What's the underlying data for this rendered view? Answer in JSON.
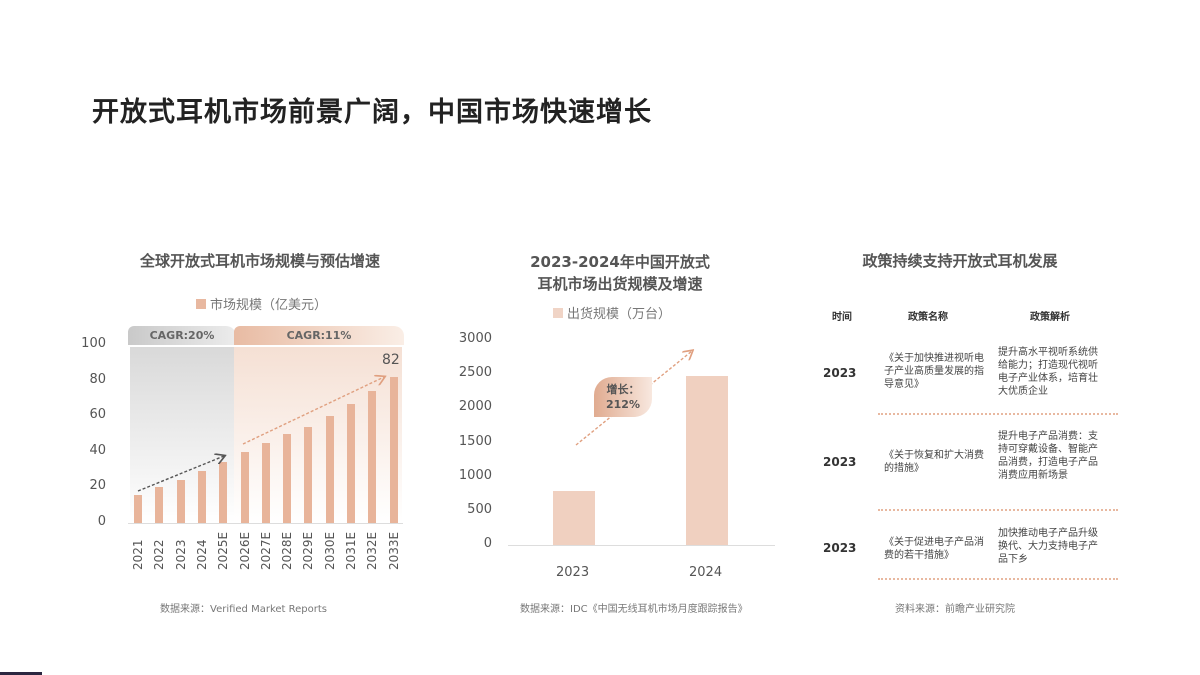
{
  "page": {
    "title": "开放式耳机市场前景广阔，中国市场快速增长"
  },
  "chart_data": [
    {
      "type": "bar",
      "title": "全球开放式耳机市场规模与预估增速",
      "legend": [
        "市场规模（亿美元）"
      ],
      "categories": [
        "2021",
        "2022",
        "2023",
        "2024",
        "2025E",
        "2026E",
        "2027E",
        "2028E",
        "2029E",
        "2030E",
        "2031E",
        "2032E",
        "2033E"
      ],
      "values": [
        16,
        20,
        24,
        29,
        34,
        40,
        45,
        50,
        54,
        60,
        67,
        74,
        82
      ],
      "ylim": [
        0,
        100
      ],
      "yticks": [
        0,
        20,
        40,
        60,
        80,
        100
      ],
      "annotations": {
        "last_value_label": "82",
        "cagr_periods": [
          {
            "label": "CAGR:20%",
            "range": "2021-2025E"
          },
          {
            "label": "CAGR:11%",
            "range": "2026E-2033E"
          }
        ]
      },
      "xlabel": "",
      "ylabel": "",
      "source": "数据来源：Verified Market Reports"
    },
    {
      "type": "bar",
      "title": "2023-2024年中国开放式耳机市场出货规模及增速",
      "title_lines": [
        "2023-2024年中国开放式",
        "耳机市场出货规模及增速"
      ],
      "legend": [
        "出货规模（万台）"
      ],
      "categories": [
        "2023",
        "2024"
      ],
      "values": [
        790,
        2470
      ],
      "ylim": [
        0,
        3000
      ],
      "yticks": [
        0,
        500,
        1000,
        1500,
        2000,
        2500,
        3000
      ],
      "annotations": {
        "growth_label": "增长：",
        "growth_value": "212%"
      },
      "xlabel": "",
      "ylabel": "",
      "source": "数据来源：IDC《中国无线耳机市场月度跟踪报告》"
    },
    {
      "type": "table",
      "title": "政策持续支持开放式耳机发展",
      "columns": [
        "时间",
        "政策名称",
        "政策解析"
      ],
      "rows": [
        [
          "2023",
          "《关于加快推进视听电子产业高质量发展的指导意见》",
          "提升高水平视听系统供给能力；打造现代视听电子产业体系，培育壮大优质企业"
        ],
        [
          "2023",
          "《关于恢复和扩大消费的措施》",
          "提升电子产品消费：支持可穿戴设备、智能产品消费，打造电子产品消费应用新场景"
        ],
        [
          "2023",
          "《关于促进电子产品消费的若干措施》",
          "加快推动电子产品升级换代、大力支持电子产品下乡"
        ]
      ],
      "source": "资料来源：前瞻产业研究院"
    }
  ],
  "colors": {
    "bar_primary": "#e8b49a",
    "bar_light": "#f0d0c0",
    "accent_arrow": "#e0a080",
    "dark_arrow": "#555555",
    "gray_band": "#d9d9d9",
    "peach_band": "#f5e0d4"
  }
}
